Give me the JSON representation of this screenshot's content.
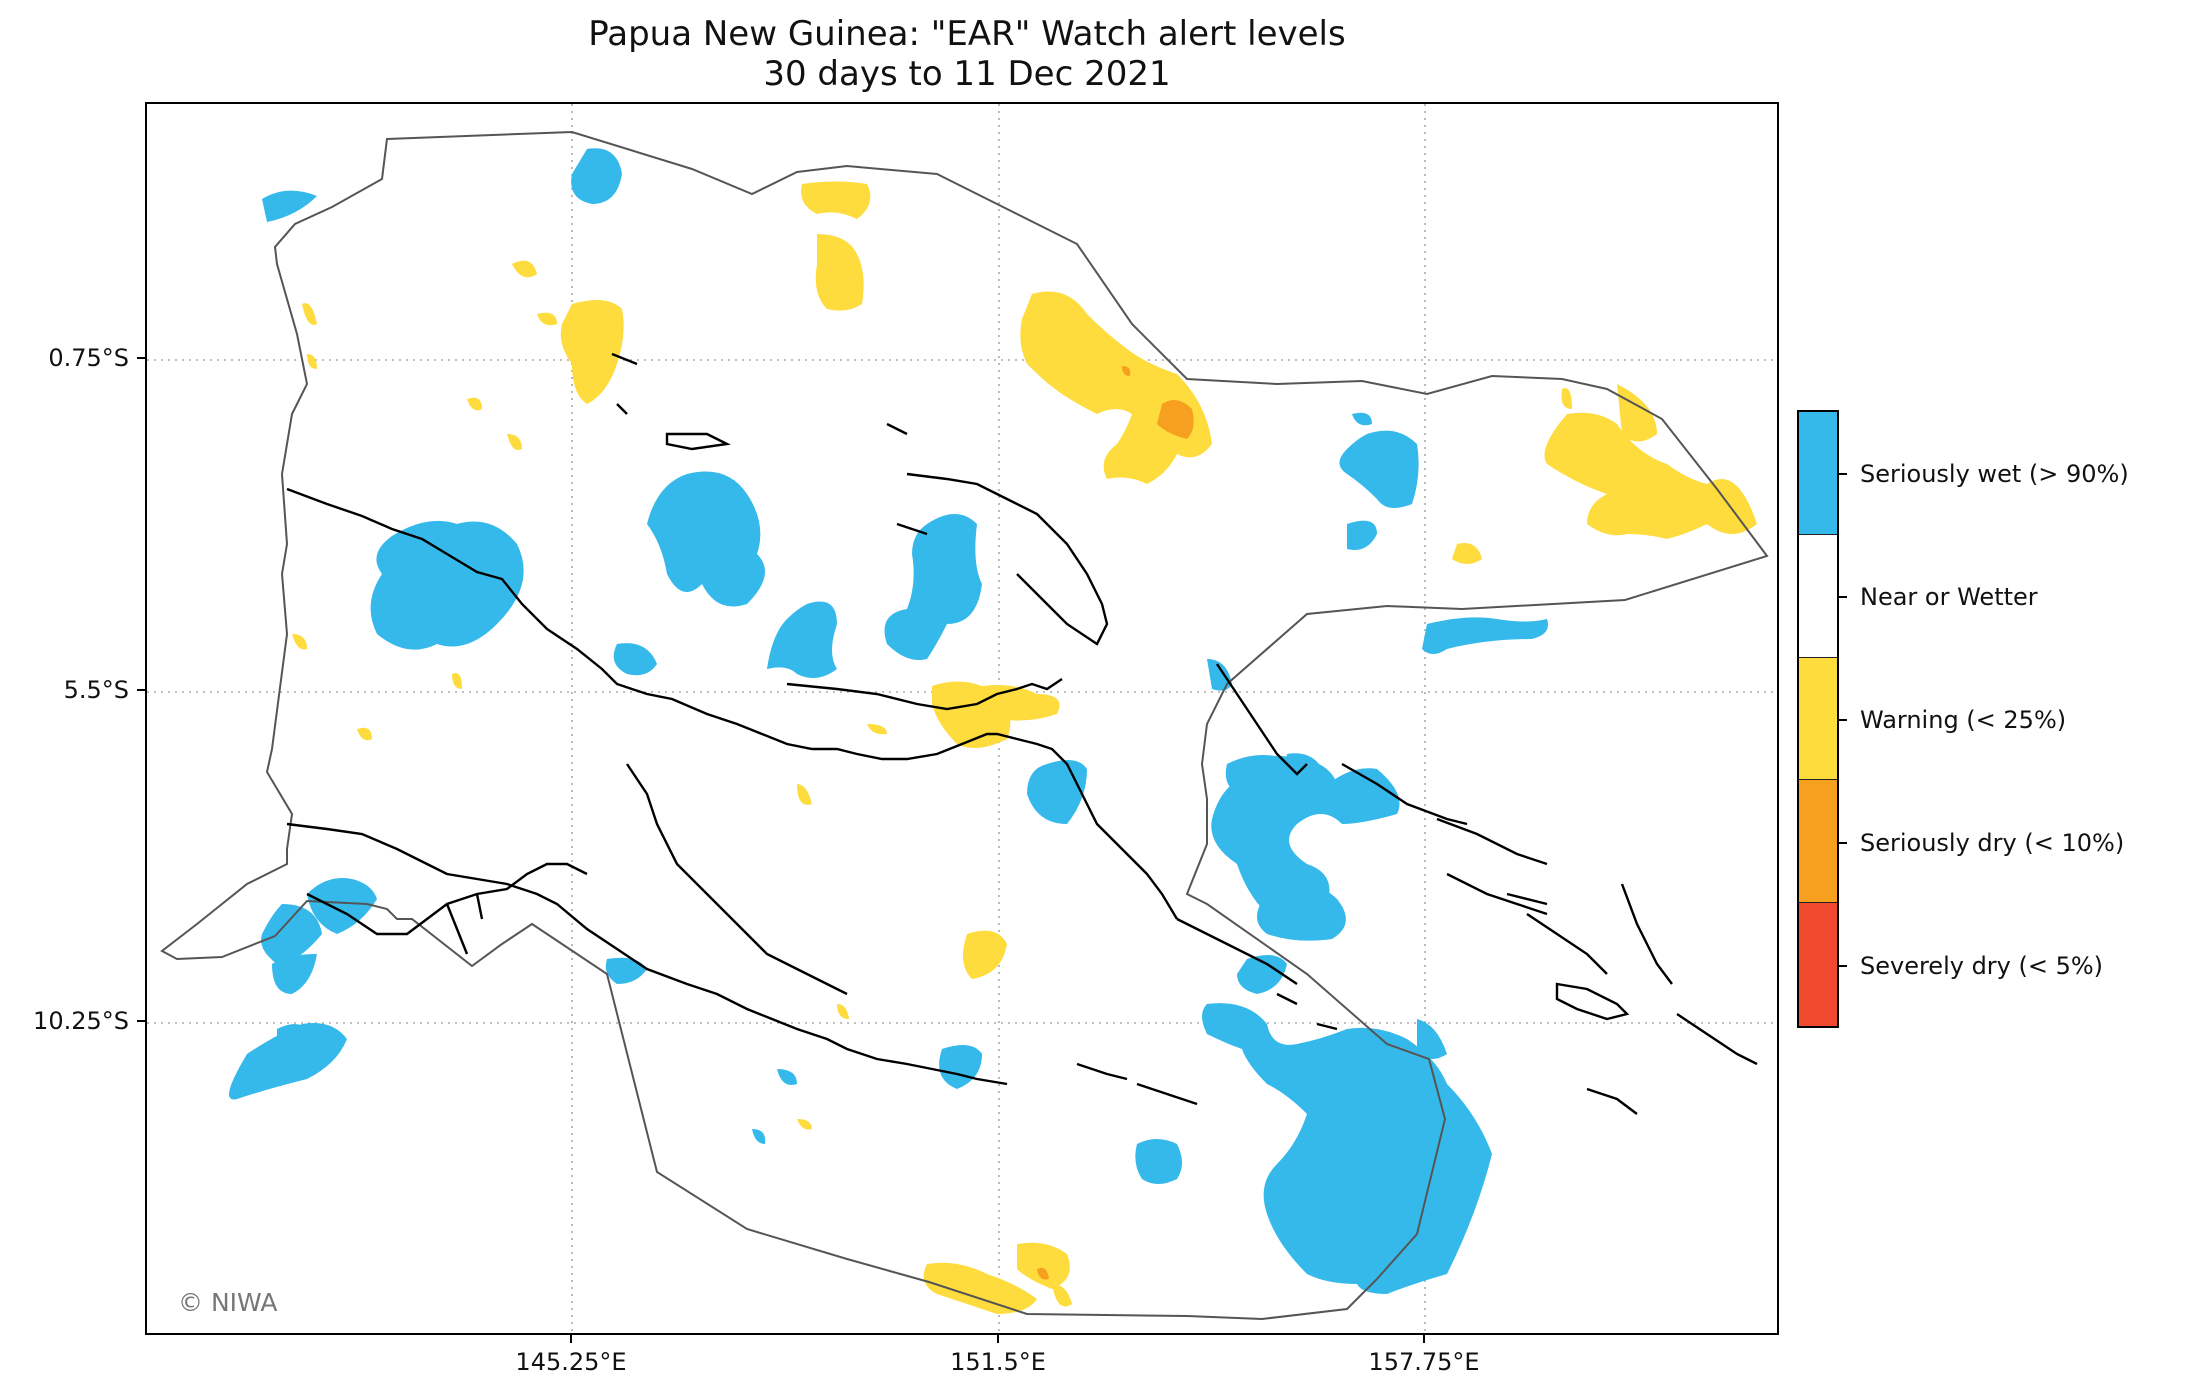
{
  "title_line1": "Papua New Guinea: \"EAR\" Watch alert levels",
  "title_line2": "30 days to 11 Dec 2021",
  "credit": "© NIWA",
  "y_axis_labels": [
    "0.75°S",
    "5.5°S",
    "10.25°S"
  ],
  "x_axis_labels": [
    "145.25°E",
    "151.5°E",
    "157.75°E"
  ],
  "legend": [
    {
      "label": "Seriously wet (> 90%)",
      "color": "#35B9EB"
    },
    {
      "label": "Near or Wetter",
      "color": "#FFFFFF"
    },
    {
      "label": "Warning (< 25%)",
      "color": "#FEDC3D"
    },
    {
      "label": "Seriously dry (< 10%)",
      "color": "#F7A01F"
    },
    {
      "label": "Severely dry (< 5%)",
      "color": "#F04A2E"
    }
  ],
  "colors": {
    "seriously_wet": "#35B9EB",
    "warning": "#FEDC3D",
    "seriously_dry": "#F7A01F",
    "boundary": "#555555",
    "coastline": "#000000",
    "grid": "#aaaaaa"
  }
}
